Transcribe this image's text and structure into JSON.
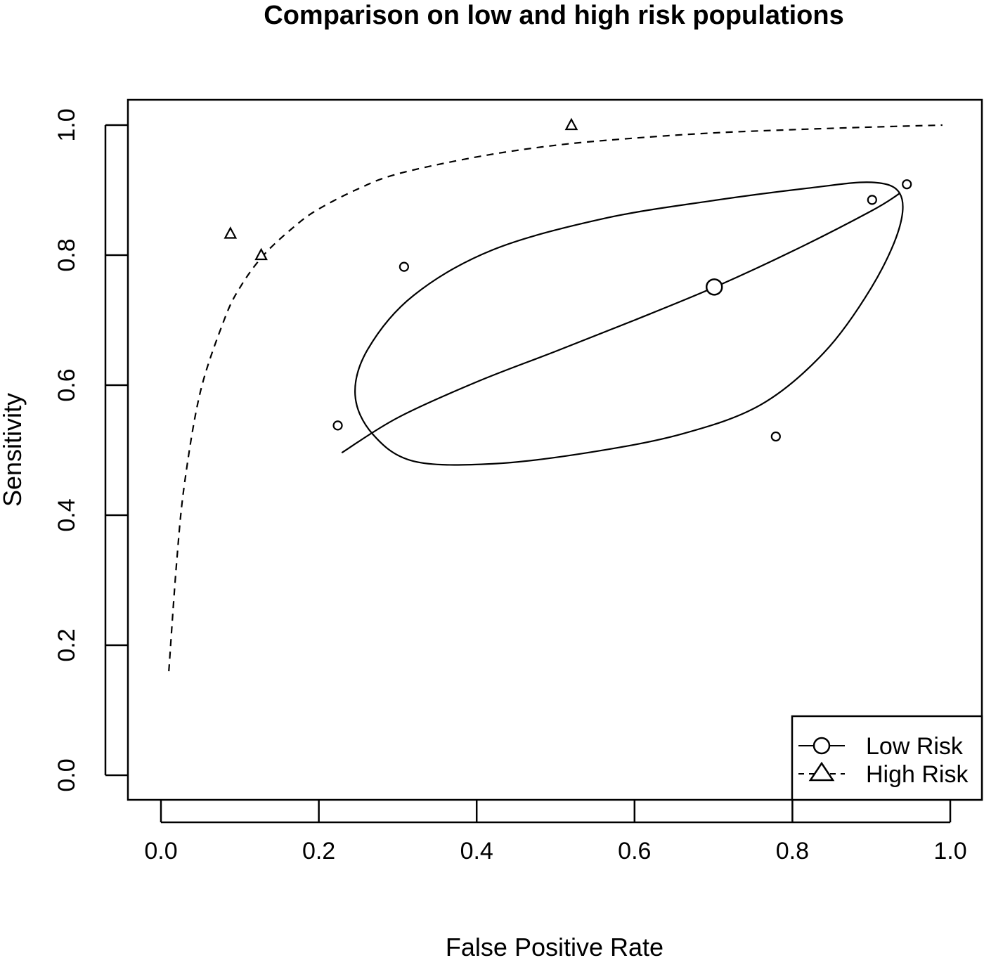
{
  "chart_data": {
    "type": "scatter",
    "title": "Comparison on low and high risk populations",
    "xlabel": "False Positive Rate",
    "ylabel": "Sensitivity",
    "xlim": [
      0.0,
      1.0
    ],
    "ylim": [
      0.0,
      1.0
    ],
    "x_ticks": [
      "0.0",
      "0.2",
      "0.4",
      "0.6",
      "0.8",
      "1.0"
    ],
    "y_ticks": [
      "0.0",
      "0.2",
      "0.4",
      "0.6",
      "0.8",
      "1.0"
    ],
    "grid": false,
    "legend_position": "bottom-right",
    "series": [
      {
        "name": "Low Risk",
        "marker": "circle",
        "line_style": "solid",
        "points": [
          {
            "x": 0.224,
            "y": 0.538
          },
          {
            "x": 0.308,
            "y": 0.782
          },
          {
            "x": 0.779,
            "y": 0.521
          },
          {
            "x": 0.901,
            "y": 0.885
          },
          {
            "x": 0.945,
            "y": 0.909
          }
        ],
        "summary_point": {
          "x": 0.701,
          "y": 0.751
        },
        "sroc_curve": [
          {
            "x": 0.229,
            "y": 0.496
          },
          {
            "x": 0.3,
            "y": 0.55
          },
          {
            "x": 0.4,
            "y": 0.605
          },
          {
            "x": 0.5,
            "y": 0.652
          },
          {
            "x": 0.6,
            "y": 0.7
          },
          {
            "x": 0.7,
            "y": 0.75
          },
          {
            "x": 0.8,
            "y": 0.806
          },
          {
            "x": 0.9,
            "y": 0.868
          },
          {
            "x": 0.936,
            "y": 0.895
          }
        ],
        "confidence_region": [
          {
            "x": 0.936,
            "y": 0.895
          },
          {
            "x": 0.935,
            "y": 0.84
          },
          {
            "x": 0.9,
            "y": 0.75
          },
          {
            "x": 0.84,
            "y": 0.65
          },
          {
            "x": 0.76,
            "y": 0.57
          },
          {
            "x": 0.66,
            "y": 0.525
          },
          {
            "x": 0.54,
            "y": 0.496
          },
          {
            "x": 0.42,
            "y": 0.479
          },
          {
            "x": 0.32,
            "y": 0.483
          },
          {
            "x": 0.268,
            "y": 0.525
          },
          {
            "x": 0.246,
            "y": 0.585
          },
          {
            "x": 0.262,
            "y": 0.655
          },
          {
            "x": 0.32,
            "y": 0.738
          },
          {
            "x": 0.42,
            "y": 0.808
          },
          {
            "x": 0.56,
            "y": 0.856
          },
          {
            "x": 0.7,
            "y": 0.884
          },
          {
            "x": 0.82,
            "y": 0.903
          },
          {
            "x": 0.9,
            "y": 0.912
          },
          {
            "x": 0.936,
            "y": 0.895
          }
        ]
      },
      {
        "name": "High Risk",
        "marker": "triangle",
        "line_style": "dashed",
        "points": [
          {
            "x": 0.088,
            "y": 0.833
          },
          {
            "x": 0.127,
            "y": 0.8
          },
          {
            "x": 0.52,
            "y": 1.0
          }
        ],
        "sroc_curve": [
          {
            "x": 0.01,
            "y": 0.16
          },
          {
            "x": 0.02,
            "y": 0.33
          },
          {
            "x": 0.03,
            "y": 0.45
          },
          {
            "x": 0.05,
            "y": 0.59
          },
          {
            "x": 0.08,
            "y": 0.7
          },
          {
            "x": 0.1,
            "y": 0.75
          },
          {
            "x": 0.13,
            "y": 0.8
          },
          {
            "x": 0.17,
            "y": 0.845
          },
          {
            "x": 0.2,
            "y": 0.871
          },
          {
            "x": 0.25,
            "y": 0.902
          },
          {
            "x": 0.3,
            "y": 0.925
          },
          {
            "x": 0.4,
            "y": 0.951
          },
          {
            "x": 0.5,
            "y": 0.969
          },
          {
            "x": 0.6,
            "y": 0.98
          },
          {
            "x": 0.7,
            "y": 0.988
          },
          {
            "x": 0.8,
            "y": 0.993
          },
          {
            "x": 0.9,
            "y": 0.997
          },
          {
            "x": 0.99,
            "y": 1.0
          }
        ]
      }
    ]
  }
}
